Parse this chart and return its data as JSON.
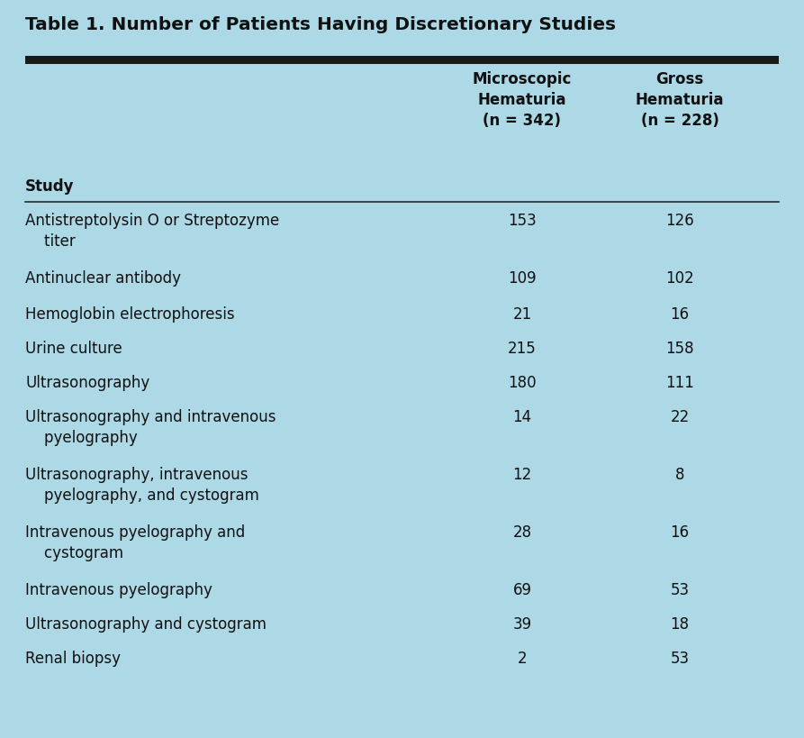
{
  "title": "Table 1. Number of Patients Having Discretionary Studies",
  "col_header_1": "Microscopic\nHematuria\n(n = 342)",
  "col_header_2": "Gross\nHematuria\n(n = 228)",
  "col_header_0": "Study",
  "rows": [
    {
      "study": "Antistreptolysin O or Streptozyme\n    titer",
      "micro": "153",
      "gross": "126"
    },
    {
      "study": "Antinuclear antibody",
      "micro": "109",
      "gross": "102"
    },
    {
      "study": "Hemoglobin electrophoresis",
      "micro": "21",
      "gross": "16"
    },
    {
      "study": "Urine culture",
      "micro": "215",
      "gross": "158"
    },
    {
      "study": "Ultrasonography",
      "micro": "180",
      "gross": "111"
    },
    {
      "study": "Ultrasonography and intravenous\n    pyelography",
      "micro": "14",
      "gross": "22"
    },
    {
      "study": "Ultrasonography, intravenous\n    pyelography, and cystogram",
      "micro": "12",
      "gross": "8"
    },
    {
      "study": "Intravenous pyelography and\n    cystogram",
      "micro": "28",
      "gross": "16"
    },
    {
      "study": "Intravenous pyelography",
      "micro": "69",
      "gross": "53"
    },
    {
      "study": "Ultrasonography and cystogram",
      "micro": "39",
      "gross": "18"
    },
    {
      "study": "Renal biopsy",
      "micro": "2",
      "gross": "53"
    }
  ],
  "background_color": "#add8e6",
  "thick_line_color": "#1a1a1a",
  "thin_line_color": "#2a2a2a",
  "text_color": "#111111",
  "title_fontsize": 14.5,
  "header_fontsize": 12,
  "body_fontsize": 12,
  "fig_width": 8.93,
  "fig_height": 8.19,
  "dpi": 100
}
